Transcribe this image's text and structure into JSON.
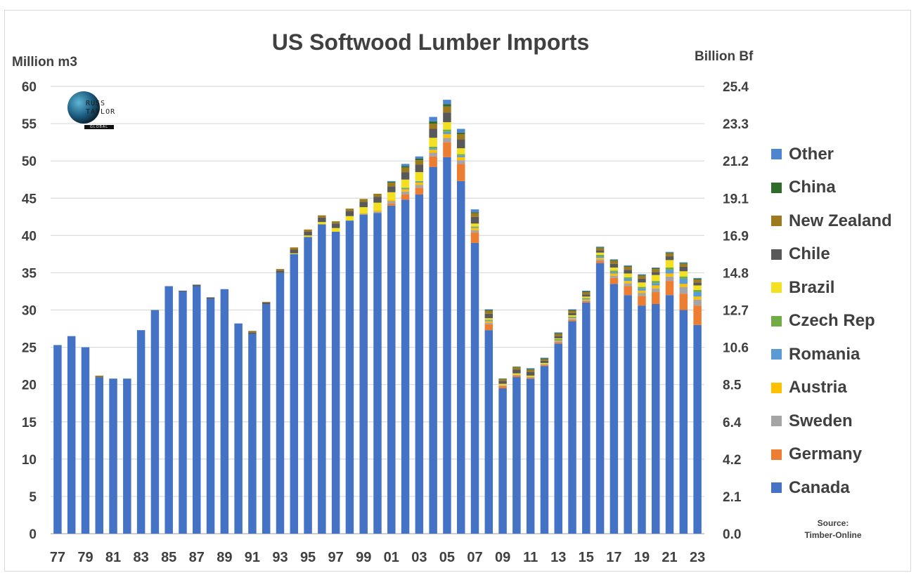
{
  "title": "US Softwood Lumber Imports",
  "logo": {
    "text_line1": "RUSS",
    "text_line2": "TAYLOR",
    "text_band": "GLOBAL"
  },
  "source": {
    "line1": "Source:",
    "line2": "Timber-Online"
  },
  "colors": {
    "Canada": "#4472c4",
    "Germany": "#ed7d31",
    "Sweden": "#a5a5a5",
    "Austria": "#ffc000",
    "Romania": "#5b9bd5",
    "Czech Rep": "#70ad47",
    "Brazil": "#f2e021",
    "Chile": "#595959",
    "New Zealand": "#9e7a1e",
    "China": "#2f6b29",
    "Other": "#4d85cf"
  },
  "legend_order": [
    "Other",
    "China",
    "New Zealand",
    "Chile",
    "Brazil",
    "Czech Rep",
    "Romania",
    "Austria",
    "Sweden",
    "Germany",
    "Canada"
  ],
  "chart_data": {
    "type": "bar",
    "stacked": true,
    "title": "US Softwood Lumber Imports",
    "ylabel": "Million m3",
    "ylabel_right": "Billion Bf",
    "ylim": [
      0,
      60
    ],
    "yticks": [
      "0",
      "5",
      "10",
      "15",
      "20",
      "25",
      "30",
      "35",
      "40",
      "45",
      "50",
      "55",
      "60"
    ],
    "yticks_right": [
      "0.0",
      "2.1",
      "4.2",
      "6.4",
      "8.5",
      "10.6",
      "12.7",
      "14.8",
      "16.9",
      "19.1",
      "21.2",
      "23.3",
      "25.4"
    ],
    "categories": [
      "77",
      "78",
      "79",
      "80",
      "81",
      "82",
      "83",
      "84",
      "85",
      "86",
      "87",
      "88",
      "89",
      "90",
      "91",
      "92",
      "93",
      "94",
      "95",
      "96",
      "97",
      "98",
      "99",
      "00",
      "01",
      "02",
      "03",
      "04",
      "05",
      "06",
      "07",
      "08",
      "09",
      "10",
      "11",
      "12",
      "13",
      "14",
      "15",
      "16",
      "17",
      "18",
      "19",
      "20",
      "21",
      "22",
      "23"
    ],
    "xtick_labels": [
      "77",
      "79",
      "81",
      "83",
      "85",
      "87",
      "89",
      "91",
      "93",
      "95",
      "97",
      "99",
      "01",
      "03",
      "05",
      "07",
      "09",
      "11",
      "13",
      "15",
      "17",
      "19",
      "21",
      "23"
    ],
    "legend_position": "right",
    "grid": true,
    "series": [
      {
        "name": "Canada",
        "values": [
          25.3,
          26.5,
          25.0,
          21.0,
          20.8,
          20.8,
          27.3,
          30.0,
          33.2,
          32.5,
          33.2,
          31.5,
          32.8,
          28.2,
          26.8,
          30.8,
          35.0,
          37.5,
          39.8,
          41.5,
          40.5,
          42.0,
          42.8,
          43.0,
          44.0,
          44.8,
          45.5,
          49.2,
          50.5,
          47.3,
          39.0,
          27.3,
          19.5,
          21.0,
          20.8,
          22.5,
          25.5,
          28.5,
          31.0,
          36.3,
          33.5,
          32.0,
          30.6,
          30.8,
          32.0,
          30.0,
          28.0
        ]
      },
      {
        "name": "Germany",
        "values": [
          0,
          0,
          0,
          0,
          0,
          0,
          0,
          0,
          0,
          0,
          0,
          0,
          0,
          0,
          0,
          0,
          0,
          0,
          0,
          0,
          0,
          0,
          0,
          0,
          0.3,
          0.7,
          0.9,
          1.4,
          2.0,
          2.3,
          1.4,
          0.8,
          0.3,
          0.2,
          0.1,
          0.1,
          0.2,
          0.2,
          0.2,
          0.3,
          0.8,
          1.2,
          1.3,
          1.6,
          1.9,
          2.2,
          2.6
        ]
      },
      {
        "name": "Sweden",
        "values": [
          0,
          0,
          0,
          0,
          0,
          0,
          0,
          0,
          0,
          0,
          0,
          0,
          0,
          0,
          0,
          0,
          0,
          0,
          0,
          0,
          0,
          0,
          0.1,
          0.2,
          0.3,
          0.4,
          0.4,
          0.5,
          0.6,
          0.5,
          0.3,
          0.2,
          0.1,
          0.1,
          0.1,
          0.1,
          0.1,
          0.1,
          0.1,
          0.2,
          0.3,
          0.4,
          0.4,
          0.5,
          0.6,
          0.9,
          0.8
        ]
      },
      {
        "name": "Austria",
        "values": [
          0,
          0,
          0,
          0,
          0,
          0,
          0,
          0,
          0,
          0,
          0,
          0,
          0,
          0,
          0,
          0,
          0,
          0,
          0,
          0,
          0,
          0,
          0.1,
          0.2,
          0.2,
          0.3,
          0.3,
          0.4,
          0.5,
          0.4,
          0.3,
          0.2,
          0.1,
          0.1,
          0.1,
          0.1,
          0.1,
          0.1,
          0.1,
          0.2,
          0.3,
          0.3,
          0.3,
          0.4,
          0.4,
          0.4,
          0.4
        ]
      },
      {
        "name": "Romania",
        "values": [
          0,
          0,
          0,
          0,
          0,
          0,
          0,
          0,
          0,
          0,
          0,
          0,
          0,
          0,
          0,
          0,
          0,
          0,
          0,
          0,
          0,
          0,
          0,
          0,
          0,
          0.1,
          0.1,
          0.2,
          0.3,
          0.2,
          0.1,
          0.1,
          0,
          0,
          0,
          0,
          0.1,
          0.1,
          0.1,
          0.2,
          0.2,
          0.3,
          0.3,
          0.3,
          0.5,
          0.7,
          0.6
        ]
      },
      {
        "name": "Czech Rep",
        "values": [
          0,
          0,
          0,
          0,
          0,
          0,
          0,
          0,
          0,
          0,
          0,
          0,
          0,
          0,
          0,
          0,
          0,
          0,
          0,
          0,
          0,
          0,
          0,
          0,
          0,
          0.1,
          0.1,
          0.2,
          0.3,
          0.2,
          0.1,
          0.1,
          0,
          0,
          0,
          0,
          0.1,
          0.1,
          0.1,
          0.2,
          0.2,
          0.2,
          0.2,
          0.3,
          0.3,
          0.3,
          0.3
        ]
      },
      {
        "name": "Brazil",
        "values": [
          0,
          0,
          0,
          0,
          0,
          0,
          0,
          0,
          0,
          0,
          0,
          0,
          0,
          0,
          0,
          0,
          0,
          0.1,
          0.2,
          0.3,
          0.5,
          0.6,
          0.8,
          1.0,
          1.0,
          1.1,
          1.2,
          1.2,
          1.0,
          0.8,
          0.4,
          0.2,
          0.1,
          0.1,
          0.1,
          0.1,
          0.1,
          0.2,
          0.2,
          0.3,
          0.4,
          0.5,
          0.6,
          0.8,
          1.0,
          0.7,
          0.6
        ]
      },
      {
        "name": "Chile",
        "values": [
          0,
          0,
          0,
          0,
          0,
          0,
          0,
          0,
          0,
          0.1,
          0.2,
          0.2,
          0,
          0,
          0.2,
          0.2,
          0.3,
          0.5,
          0.5,
          0.6,
          0.6,
          0.7,
          0.7,
          0.8,
          0.8,
          1.0,
          1.0,
          1.2,
          1.3,
          1.2,
          0.9,
          0.6,
          0.4,
          0.5,
          0.5,
          0.3,
          0.3,
          0.3,
          0.3,
          0.3,
          0.5,
          0.5,
          0.5,
          0.4,
          0.5,
          0.6,
          0.4
        ]
      },
      {
        "name": "New Zealand",
        "values": [
          0,
          0,
          0,
          0.2,
          0,
          0,
          0,
          0,
          0,
          0,
          0,
          0,
          0,
          0,
          0.2,
          0.1,
          0.2,
          0.3,
          0.3,
          0.3,
          0.3,
          0.3,
          0.4,
          0.4,
          0.5,
          0.6,
          0.6,
          0.7,
          0.8,
          0.7,
          0.5,
          0.4,
          0.2,
          0.3,
          0.3,
          0.2,
          0.3,
          0.3,
          0.3,
          0.3,
          0.4,
          0.4,
          0.4,
          0.4,
          0.4,
          0.4,
          0.4
        ]
      },
      {
        "name": "China",
        "values": [
          0,
          0,
          0,
          0,
          0,
          0,
          0,
          0,
          0,
          0,
          0,
          0,
          0,
          0,
          0,
          0,
          0,
          0,
          0,
          0,
          0,
          0,
          0,
          0,
          0.1,
          0.2,
          0.2,
          0.3,
          0.3,
          0.2,
          0.1,
          0.1,
          0.1,
          0.1,
          0.1,
          0.1,
          0.1,
          0.1,
          0.1,
          0.1,
          0.1,
          0.1,
          0.1,
          0.1,
          0.1,
          0.1,
          0.1
        ]
      },
      {
        "name": "Other",
        "values": [
          0,
          0,
          0,
          0,
          0,
          0,
          0,
          0,
          0,
          0,
          0,
          0,
          0,
          0,
          0,
          0,
          0,
          0,
          0,
          0,
          0,
          0,
          0,
          0,
          0.1,
          0.3,
          0.3,
          0.6,
          0.6,
          0.5,
          0.4,
          0.1,
          0,
          0,
          0.1,
          0.1,
          0.1,
          0.1,
          0.1,
          0.1,
          0.1,
          0.1,
          0.1,
          0.1,
          0.1,
          0.1,
          0.1
        ]
      }
    ]
  }
}
